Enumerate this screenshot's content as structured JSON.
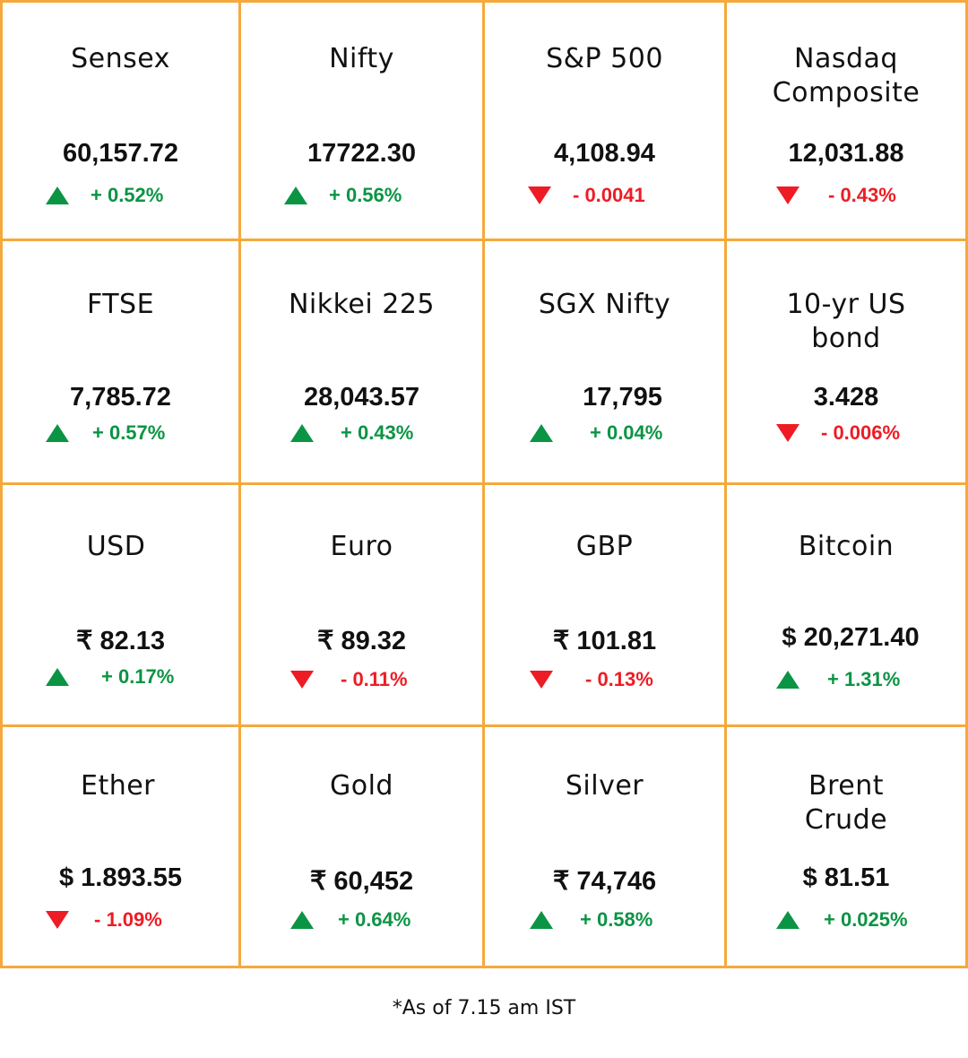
{
  "colors": {
    "border": "#f5a93c",
    "up": "#0b9444",
    "down": "#ee1c25",
    "text": "#111111"
  },
  "cells": [
    {
      "name": "Sensex",
      "value": "60,157.72",
      "change": "+ 0.52%",
      "direction": "up"
    },
    {
      "name": "Nifty",
      "value": "17722.30",
      "change": "+ 0.56%",
      "direction": "up"
    },
    {
      "name": "S&P 500",
      "value": "4,108.94",
      "change": "- 0.0041",
      "direction": "down"
    },
    {
      "name": "Nasdaq Composite",
      "value": "12,031.88",
      "change": "- 0.43%",
      "direction": "down"
    },
    {
      "name": "FTSE",
      "value": "7,785.72",
      "change": "+ 0.57%",
      "direction": "up"
    },
    {
      "name": "Nikkei 225",
      "value": "28,043.57",
      "change": "+ 0.43%",
      "direction": "up"
    },
    {
      "name": "SGX Nifty",
      "value": "17,795",
      "change": "+ 0.04%",
      "direction": "up"
    },
    {
      "name": "10-yr US bond",
      "value": "3.428",
      "change": "- 0.006%",
      "direction": "down"
    },
    {
      "name": "USD",
      "value": "₹ 82.13",
      "change": "+ 0.17%",
      "direction": "up"
    },
    {
      "name": "Euro",
      "value": "₹ 89.32",
      "change": "- 0.11%",
      "direction": "down"
    },
    {
      "name": "GBP",
      "value": "₹ 101.81",
      "change": "- 0.13%",
      "direction": "down"
    },
    {
      "name": "Bitcoin",
      "value": "$ 20,271.40",
      "change": "+ 1.31%",
      "direction": "up"
    },
    {
      "name": "Ether",
      "value": "$ 1.893.55",
      "change": "- 1.09%",
      "direction": "down"
    },
    {
      "name": "Gold",
      "value": "₹ 60,452",
      "change": "+ 0.64%",
      "direction": "up"
    },
    {
      "name": "Silver",
      "value": "₹ 74,746",
      "change": "+ 0.58%",
      "direction": "up"
    },
    {
      "name": "Brent Crude",
      "value": "$ 81.51",
      "change": "+ 0.025%",
      "direction": "up"
    }
  ],
  "footnote": "*As of 7.15 am IST"
}
